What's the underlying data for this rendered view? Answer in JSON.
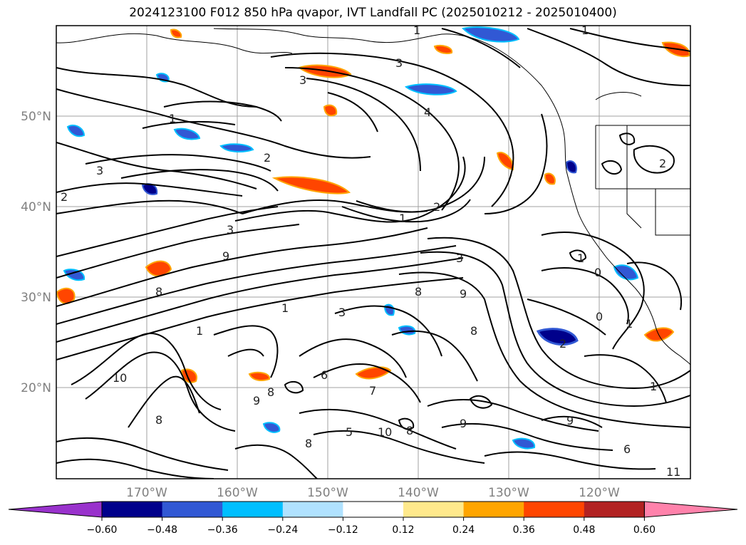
{
  "title": "2024123100 F012 850 hPa qvapor, IVT Landfall PC (2025010212 - 2025010400)",
  "map": {
    "lon_labels": [
      "170°W",
      "160°W",
      "150°W",
      "140°W",
      "130°W",
      "120°W"
    ],
    "lat_labels": [
      "50°N",
      "40°N",
      "30°N",
      "20°N"
    ],
    "contour_labels": [
      "1",
      "3",
      "3",
      "4",
      "1",
      "2",
      "3",
      "2",
      "1",
      "2",
      "3",
      "9",
      "8",
      "1",
      "1",
      "3",
      "3",
      "8",
      "9",
      "8",
      "2",
      "1",
      "0",
      "0",
      "2",
      "1",
      "10",
      "8",
      "9",
      "8",
      "6",
      "5",
      "8",
      "10",
      "7",
      "8",
      "9",
      "9",
      "6",
      "1",
      "1",
      "11"
    ]
  },
  "colorbar": {
    "ticks": [
      "−0.60",
      "−0.48",
      "−0.36",
      "−0.24",
      "−0.12",
      "0.12",
      "0.24",
      "0.36",
      "0.48",
      "0.60"
    ],
    "colors": [
      "#9932cc",
      "#00008b",
      "#3158d4",
      "#00bfff",
      "#b0e2ff",
      "#ffffff",
      "#ffe98c",
      "#ffa500",
      "#ff4500",
      "#b22222",
      "#ff82ab"
    ]
  }
}
